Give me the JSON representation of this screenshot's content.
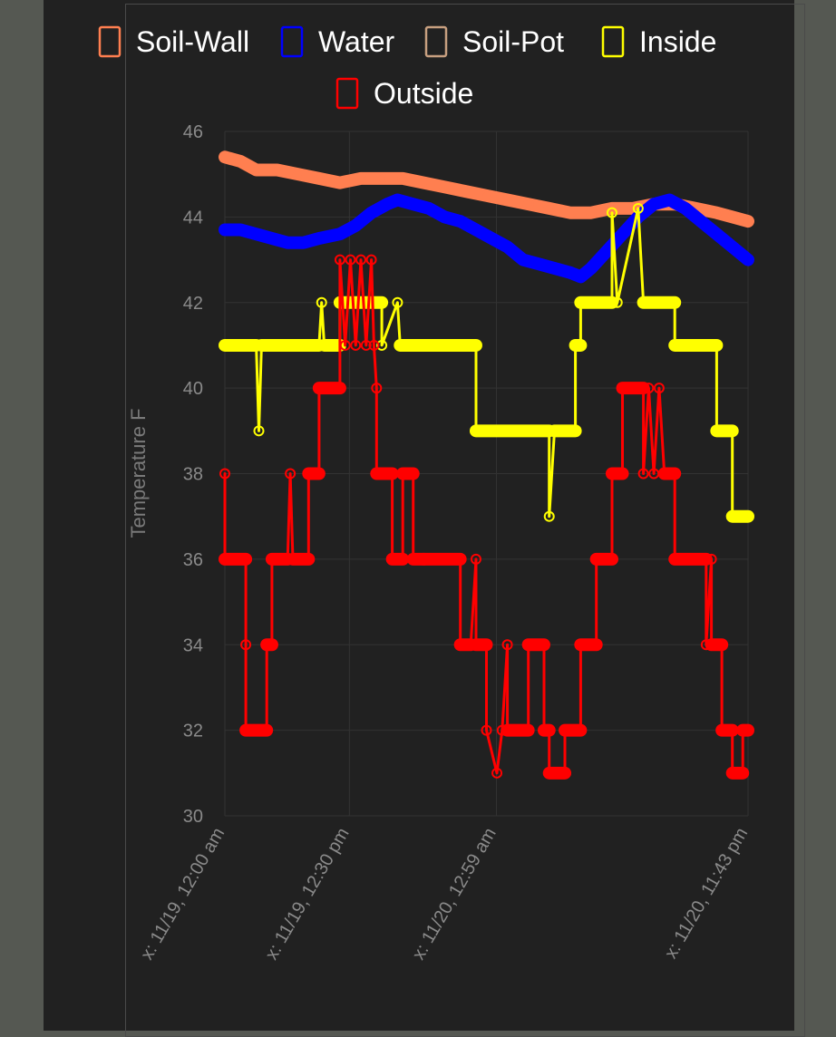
{
  "colors": {
    "page_background": "#555852",
    "panel_background": "#212121",
    "grid": "#333333"
  },
  "chart_data": {
    "type": "line",
    "title": "",
    "xlabel": "",
    "ylabel": "Temperature F",
    "ylim": [
      30,
      46
    ],
    "y_ticks": [
      30,
      32,
      34,
      36,
      38,
      40,
      42,
      44,
      46
    ],
    "x_range": [
      0,
      100
    ],
    "x_ticks": [
      {
        "x": 0,
        "label": "x: 11/19, 12:00 am"
      },
      {
        "x": 23.8,
        "label": "x: 11/19, 12:30 pm"
      },
      {
        "x": 51.9,
        "label": "x: 11/20, 12:59 am"
      },
      {
        "x": 100,
        "label": "x: 11/20, 11:43 pm"
      }
    ],
    "grid": true,
    "legend_position": "top",
    "series": [
      {
        "name": "Soil-Wall",
        "color": "#ff7f50",
        "points": [
          [
            0,
            45.4
          ],
          [
            3,
            45.3
          ],
          [
            6,
            45.1
          ],
          [
            10,
            45.1
          ],
          [
            14,
            45.0
          ],
          [
            18,
            44.9
          ],
          [
            22,
            44.8
          ],
          [
            26,
            44.9
          ],
          [
            30,
            44.9
          ],
          [
            34,
            44.9
          ],
          [
            38,
            44.8
          ],
          [
            42,
            44.7
          ],
          [
            46,
            44.6
          ],
          [
            50,
            44.5
          ],
          [
            54,
            44.4
          ],
          [
            58,
            44.3
          ],
          [
            62,
            44.2
          ],
          [
            66,
            44.1
          ],
          [
            70,
            44.1
          ],
          [
            74,
            44.2
          ],
          [
            78,
            44.2
          ],
          [
            82,
            44.3
          ],
          [
            86,
            44.3
          ],
          [
            90,
            44.2
          ],
          [
            94,
            44.1
          ],
          [
            97,
            44.0
          ],
          [
            100,
            43.9
          ]
        ]
      },
      {
        "name": "Water",
        "color": "#0000ff",
        "points": [
          [
            0,
            43.7
          ],
          [
            3,
            43.7
          ],
          [
            6,
            43.6
          ],
          [
            9,
            43.5
          ],
          [
            12,
            43.4
          ],
          [
            15,
            43.4
          ],
          [
            18,
            43.5
          ],
          [
            22,
            43.6
          ],
          [
            25,
            43.8
          ],
          [
            28,
            44.1
          ],
          [
            31,
            44.3
          ],
          [
            33,
            44.4
          ],
          [
            36,
            44.3
          ],
          [
            39,
            44.2
          ],
          [
            42,
            44.0
          ],
          [
            45,
            43.9
          ],
          [
            48,
            43.7
          ],
          [
            51,
            43.5
          ],
          [
            54,
            43.3
          ],
          [
            57,
            43.0
          ],
          [
            60,
            42.9
          ],
          [
            63,
            42.8
          ],
          [
            66,
            42.7
          ],
          [
            68,
            42.6
          ],
          [
            70,
            42.8
          ],
          [
            73,
            43.2
          ],
          [
            76,
            43.6
          ],
          [
            79,
            44.0
          ],
          [
            82,
            44.3
          ],
          [
            85,
            44.4
          ],
          [
            88,
            44.2
          ],
          [
            91,
            43.9
          ],
          [
            94,
            43.6
          ],
          [
            97,
            43.3
          ],
          [
            100,
            43.0
          ]
        ]
      },
      {
        "name": "Soil-Pot",
        "color": "#c8a080",
        "points": []
      },
      {
        "name": "Inside",
        "color": "#ffff00",
        "points": [
          [
            0,
            41
          ],
          [
            6,
            41
          ],
          [
            6.5,
            39
          ],
          [
            7,
            41
          ],
          [
            18,
            41
          ],
          [
            18.5,
            42
          ],
          [
            19,
            41
          ],
          [
            22,
            41
          ],
          [
            22,
            42
          ],
          [
            30,
            42
          ],
          [
            30,
            41
          ],
          [
            33,
            42
          ],
          [
            33.5,
            41
          ],
          [
            48,
            41
          ],
          [
            48,
            39
          ],
          [
            62,
            39
          ],
          [
            62,
            37
          ],
          [
            63,
            39
          ],
          [
            67,
            39
          ],
          [
            67,
            41
          ],
          [
            68,
            41
          ],
          [
            68,
            42
          ],
          [
            74,
            42
          ],
          [
            74,
            44.1
          ],
          [
            75,
            42
          ],
          [
            79,
            44.2
          ],
          [
            80,
            42
          ],
          [
            86,
            42
          ],
          [
            86,
            41
          ],
          [
            94,
            41
          ],
          [
            94,
            39
          ],
          [
            97,
            39
          ],
          [
            97,
            37
          ],
          [
            100,
            37
          ]
        ]
      },
      {
        "name": "Outside",
        "color": "#ff0000",
        "points": [
          [
            0,
            38
          ],
          [
            0,
            36
          ],
          [
            4,
            36
          ],
          [
            4,
            34
          ],
          [
            4,
            32
          ],
          [
            8,
            32
          ],
          [
            8,
            34
          ],
          [
            9,
            34
          ],
          [
            9,
            36
          ],
          [
            12,
            36
          ],
          [
            12.5,
            38
          ],
          [
            13,
            36
          ],
          [
            16,
            36
          ],
          [
            16,
            38
          ],
          [
            18,
            38
          ],
          [
            18,
            40
          ],
          [
            22,
            40
          ],
          [
            22,
            43
          ],
          [
            23,
            41
          ],
          [
            24,
            43
          ],
          [
            25,
            41
          ],
          [
            26,
            43
          ],
          [
            27,
            41
          ],
          [
            28,
            43
          ],
          [
            28.5,
            41
          ],
          [
            29,
            40
          ],
          [
            29,
            38
          ],
          [
            32,
            38
          ],
          [
            32,
            36
          ],
          [
            34,
            36
          ],
          [
            34,
            38
          ],
          [
            36,
            38
          ],
          [
            36,
            36
          ],
          [
            38,
            36
          ],
          [
            38,
            36
          ],
          [
            45,
            36
          ],
          [
            45,
            34
          ],
          [
            47,
            34
          ],
          [
            48,
            36
          ],
          [
            48,
            34
          ],
          [
            50,
            34
          ],
          [
            50,
            32
          ],
          [
            52,
            31
          ],
          [
            53,
            32
          ],
          [
            54,
            34
          ],
          [
            54,
            32
          ],
          [
            58,
            32
          ],
          [
            58,
            34
          ],
          [
            61,
            34
          ],
          [
            61,
            32
          ],
          [
            62,
            32
          ],
          [
            62,
            31
          ],
          [
            65,
            31
          ],
          [
            65,
            32
          ],
          [
            68,
            32
          ],
          [
            68,
            34
          ],
          [
            71,
            34
          ],
          [
            71,
            36
          ],
          [
            74,
            36
          ],
          [
            74,
            38
          ],
          [
            76,
            38
          ],
          [
            76,
            40
          ],
          [
            80,
            40
          ],
          [
            80,
            38
          ],
          [
            81,
            40
          ],
          [
            82,
            38
          ],
          [
            83,
            40
          ],
          [
            84,
            38
          ],
          [
            86,
            38
          ],
          [
            86,
            36
          ],
          [
            92,
            36
          ],
          [
            92,
            34
          ],
          [
            93,
            36
          ],
          [
            93,
            34
          ],
          [
            95,
            34
          ],
          [
            95,
            32
          ],
          [
            97,
            32
          ],
          [
            97,
            31
          ],
          [
            99,
            31
          ],
          [
            99,
            32
          ],
          [
            100,
            32
          ]
        ]
      }
    ]
  }
}
